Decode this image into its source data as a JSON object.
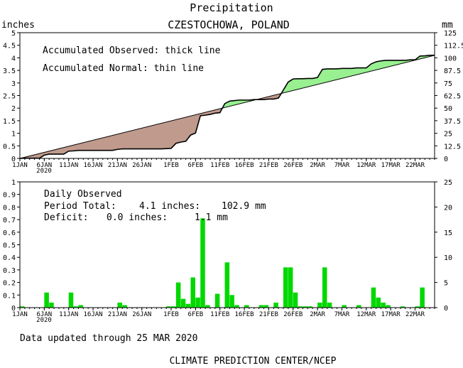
{
  "title": "Precipitation",
  "subtitle": "CZESTOCHOWA, POLAND",
  "footer_updated": "Data updated through 25 MAR 2020",
  "footer_credit": "CLIMATE PREDICTION CENTER/NCEP",
  "colors": {
    "deficit_fill": "#c09a8c",
    "surplus_fill": "#98f090",
    "bar": "#00d800",
    "line": "#000000"
  },
  "chart_data": [
    {
      "type": "area",
      "name": "accumulated",
      "left_unit": "inches",
      "right_unit": "mm",
      "ylim": [
        0,
        5
      ],
      "yticks": [
        "0",
        "0.5",
        "1",
        "1.5",
        "2",
        "2.5",
        "3",
        "3.5",
        "4",
        "4.5",
        "5"
      ],
      "right_yticks": [
        "0",
        "12.5",
        "25",
        "37.5",
        "50",
        "62.5",
        "75",
        "87.5",
        "100",
        "112.5",
        "125"
      ],
      "xlim": [
        1,
        85
      ],
      "xticks": [
        {
          "day": 1,
          "label": "1JAN"
        },
        {
          "day": 6,
          "label": "6JAN"
        },
        {
          "day": 11,
          "label": "11JAN"
        },
        {
          "day": 16,
          "label": "16JAN"
        },
        {
          "day": 21,
          "label": "21JAN"
        },
        {
          "day": 26,
          "label": "26JAN"
        },
        {
          "day": 32,
          "label": "1FEB"
        },
        {
          "day": 37,
          "label": "6FEB"
        },
        {
          "day": 42,
          "label": "11FEB"
        },
        {
          "day": 47,
          "label": "16FEB"
        },
        {
          "day": 52,
          "label": "21FEB"
        },
        {
          "day": 57,
          "label": "26FEB"
        },
        {
          "day": 62,
          "label": "2MAR"
        },
        {
          "day": 67,
          "label": "7MAR"
        },
        {
          "day": 72,
          "label": "12MAR"
        },
        {
          "day": 77,
          "label": "17MAR"
        },
        {
          "day": 82,
          "label": "22MAR"
        }
      ],
      "year_label": "2020",
      "legend_observed": "Accumulated Observed: thick line",
      "legend_normal": "Accumulated Normal: thin line",
      "normal": [
        [
          0,
          0
        ],
        [
          85,
          4.1
        ]
      ],
      "observed": [
        [
          0,
          0
        ],
        [
          1,
          0.01
        ],
        [
          2,
          0.01
        ],
        [
          3,
          0.01
        ],
        [
          4,
          0.01
        ],
        [
          5,
          0.13
        ],
        [
          6,
          0.17
        ],
        [
          7,
          0.17
        ],
        [
          8,
          0.17
        ],
        [
          9,
          0.17
        ],
        [
          10,
          0.29
        ],
        [
          11,
          0.3
        ],
        [
          12,
          0.32
        ],
        [
          13,
          0.32
        ],
        [
          14,
          0.32
        ],
        [
          15,
          0.32
        ],
        [
          16,
          0.32
        ],
        [
          17,
          0.32
        ],
        [
          18,
          0.32
        ],
        [
          19,
          0.32
        ],
        [
          20,
          0.36
        ],
        [
          21,
          0.38
        ],
        [
          22,
          0.38
        ],
        [
          23,
          0.38
        ],
        [
          24,
          0.38
        ],
        [
          25,
          0.38
        ],
        [
          26,
          0.38
        ],
        [
          27,
          0.38
        ],
        [
          28,
          0.38
        ],
        [
          29,
          0.38
        ],
        [
          30,
          0.39
        ],
        [
          31,
          0.4
        ],
        [
          32,
          0.6
        ],
        [
          33,
          0.65
        ],
        [
          34,
          0.68
        ],
        [
          35,
          0.93
        ],
        [
          36,
          1.01
        ],
        [
          37,
          1.7
        ],
        [
          38,
          1.72
        ],
        [
          39,
          1.75
        ],
        [
          40,
          1.8
        ],
        [
          41,
          1.82
        ],
        [
          42,
          2.18
        ],
        [
          43,
          2.28
        ],
        [
          44,
          2.3
        ],
        [
          45,
          2.32
        ],
        [
          46,
          2.32
        ],
        [
          47,
          2.32
        ],
        [
          48,
          2.34
        ],
        [
          49,
          2.34
        ],
        [
          50,
          2.34
        ],
        [
          51,
          2.36
        ],
        [
          52,
          2.36
        ],
        [
          53,
          2.4
        ],
        [
          54,
          2.72
        ],
        [
          55,
          3.04
        ],
        [
          56,
          3.16
        ],
        [
          57,
          3.17
        ],
        [
          58,
          3.17
        ],
        [
          59,
          3.18
        ],
        [
          60,
          3.18
        ],
        [
          61,
          3.22
        ],
        [
          62,
          3.54
        ],
        [
          63,
          3.56
        ],
        [
          64,
          3.56
        ],
        [
          65,
          3.56
        ],
        [
          66,
          3.58
        ],
        [
          67,
          3.58
        ],
        [
          68,
          3.58
        ],
        [
          69,
          3.6
        ],
        [
          70,
          3.6
        ],
        [
          71,
          3.6
        ],
        [
          72,
          3.76
        ],
        [
          73,
          3.84
        ],
        [
          74,
          3.88
        ],
        [
          75,
          3.9
        ],
        [
          76,
          3.9
        ],
        [
          77,
          3.9
        ],
        [
          78,
          3.9
        ],
        [
          79,
          3.9
        ],
        [
          80,
          3.92
        ],
        [
          81,
          3.92
        ],
        [
          82,
          4.07
        ],
        [
          83,
          4.08
        ],
        [
          84,
          4.1
        ],
        [
          85,
          4.1
        ]
      ]
    },
    {
      "type": "bar",
      "name": "daily",
      "left_unit": "",
      "right_unit": "",
      "ylim": [
        0,
        1
      ],
      "yticks": [
        "0",
        "0.1",
        "0.2",
        "0.3",
        "0.4",
        "0.5",
        "0.6",
        "0.7",
        "0.8",
        "0.9",
        "1"
      ],
      "right_yticks": [
        "0",
        "5",
        "10",
        "15",
        "20",
        "25"
      ],
      "legend_title": "Daily Observed",
      "period_label": "Period Total:",
      "period_in": "4.1 inches:",
      "period_mm": "102.9 mm",
      "deficit_label": "Deficit:",
      "deficit_in": "0.0 inches:",
      "deficit_mm": "1.1 mm",
      "bars": [
        {
          "day": 0,
          "value": 0.01
        },
        {
          "day": 5,
          "value": 0.12
        },
        {
          "day": 6,
          "value": 0.04
        },
        {
          "day": 10,
          "value": 0.12
        },
        {
          "day": 11,
          "value": 0.01
        },
        {
          "day": 12,
          "value": 0.02
        },
        {
          "day": 20,
          "value": 0.04
        },
        {
          "day": 21,
          "value": 0.02
        },
        {
          "day": 30,
          "value": 0.01
        },
        {
          "day": 31,
          "value": 0.01
        },
        {
          "day": 32,
          "value": 0.2
        },
        {
          "day": 33,
          "value": 0.07
        },
        {
          "day": 34,
          "value": 0.03
        },
        {
          "day": 35,
          "value": 0.24
        },
        {
          "day": 36,
          "value": 0.08
        },
        {
          "day": 37,
          "value": 0.71
        },
        {
          "day": 38,
          "value": 0.02
        },
        {
          "day": 40,
          "value": 0.11
        },
        {
          "day": 42,
          "value": 0.36
        },
        {
          "day": 43,
          "value": 0.1
        },
        {
          "day": 44,
          "value": 0.02
        },
        {
          "day": 46,
          "value": 0.02
        },
        {
          "day": 49,
          "value": 0.02
        },
        {
          "day": 50,
          "value": 0.02
        },
        {
          "day": 52,
          "value": 0.04
        },
        {
          "day": 54,
          "value": 0.32
        },
        {
          "day": 55,
          "value": 0.32
        },
        {
          "day": 56,
          "value": 0.12
        },
        {
          "day": 57,
          "value": 0.01
        },
        {
          "day": 58,
          "value": 0.01
        },
        {
          "day": 59,
          "value": 0.01
        },
        {
          "day": 61,
          "value": 0.04
        },
        {
          "day": 62,
          "value": 0.32
        },
        {
          "day": 63,
          "value": 0.04
        },
        {
          "day": 66,
          "value": 0.02
        },
        {
          "day": 69,
          "value": 0.02
        },
        {
          "day": 72,
          "value": 0.16
        },
        {
          "day": 73,
          "value": 0.08
        },
        {
          "day": 74,
          "value": 0.04
        },
        {
          "day": 75,
          "value": 0.02
        },
        {
          "day": 78,
          "value": 0.01
        },
        {
          "day": 81,
          "value": 0.01
        },
        {
          "day": 82,
          "value": 0.16
        }
      ]
    }
  ]
}
